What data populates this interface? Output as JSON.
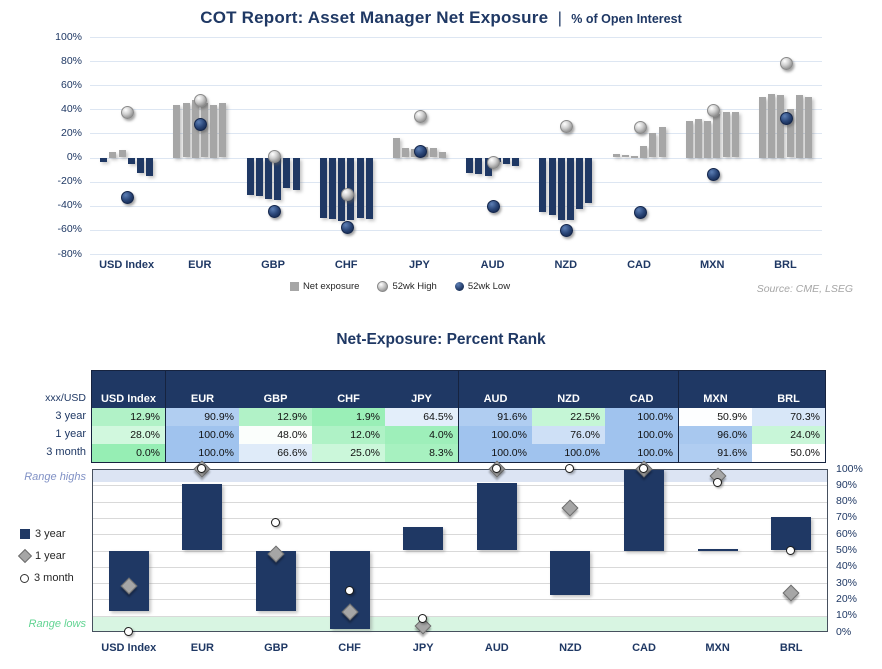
{
  "header": {
    "title_main": "COT Report: Asset Manager Net Exposure",
    "title_sep": "|",
    "title_sub": "% of Open Interest"
  },
  "source": "Source: CME, LSEG",
  "colors": {
    "navy": "#1F3864",
    "bar_gray": "#A6A6A6",
    "grid_top": "#DDE6F2",
    "grid_bottom": "#D9D9D9",
    "band_highs": "#DCE4F3",
    "band_lows": "#D8F5E2",
    "range_highs_text": "#8091C5",
    "range_lows_text": "#62D493",
    "scale_green": "#96EEB4",
    "scale_blue": "#A0C3EE",
    "source_text": "#A6A6A6",
    "table_header_bg": "#1F3864"
  },
  "table": {
    "corner_label": "xxx/USD",
    "columns": [
      "USD Index",
      "EUR",
      "GBP",
      "CHF",
      "JPY",
      "AUD",
      "NZD",
      "CAD",
      "MXN",
      "BRL"
    ],
    "group_separators_after": [
      0,
      4,
      7
    ],
    "rows": [
      {
        "label": "3 year",
        "values": [
          12.9,
          90.9,
          12.9,
          1.9,
          64.5,
          91.6,
          22.5,
          100.0,
          50.9,
          70.3
        ]
      },
      {
        "label": "1 year",
        "values": [
          28.0,
          100.0,
          48.0,
          12.0,
          4.0,
          100.0,
          76.0,
          100.0,
          96.0,
          24.0
        ]
      },
      {
        "label": "3 month",
        "values": [
          0.0,
          100.0,
          66.6,
          25.0,
          8.3,
          100.0,
          100.0,
          100.0,
          91.6,
          50.0
        ]
      }
    ]
  },
  "chart_data": [
    {
      "id": "net-exposure-chart",
      "type": "bar",
      "title": "COT Report: Asset Manager Net Exposure | % of Open Interest",
      "categories": [
        "USD Index",
        "EUR",
        "GBP",
        "CHF",
        "JPY",
        "AUD",
        "NZD",
        "CAD",
        "MXN",
        "BRL"
      ],
      "ylim": [
        -80,
        100
      ],
      "y_ticks": [
        100,
        80,
        60,
        40,
        20,
        0,
        -20,
        -40,
        -60,
        -80
      ],
      "grid": true,
      "legend_position": "bottom",
      "series": [
        {
          "name": "Net exposure",
          "type": "bar-group-weekly",
          "values": [
            [
              -4,
              5,
              6,
              -5,
              -13,
              -15
            ],
            [
              44,
              45,
              48,
              45,
              44,
              45
            ],
            [
              -31,
              -32,
              -34,
              -35,
              -25,
              -27
            ],
            [
              -50,
              -51,
              -53,
              -52,
              -50,
              -51
            ],
            [
              16,
              8,
              7,
              9,
              8,
              5
            ],
            [
              -13,
              -14,
              -15,
              -4,
              -5,
              -7
            ],
            [
              -45,
              -48,
              -52,
              -52,
              -43,
              -38
            ],
            [
              3,
              2,
              1,
              10,
              20,
              25
            ],
            [
              30,
              32,
              30,
              36,
              38,
              38
            ],
            [
              50,
              53,
              52,
              40,
              52,
              50
            ]
          ]
        },
        {
          "name": "52wk High",
          "type": "scatter",
          "values": [
            38,
            48,
            2,
            -30,
            35,
            -3,
            27,
            26,
            40,
            79
          ]
        },
        {
          "name": "52wk Low",
          "type": "scatter",
          "values": [
            -32,
            28,
            -44,
            -57,
            6,
            -40,
            -60,
            -45,
            -13,
            33
          ]
        }
      ]
    },
    {
      "id": "percent-rank-chart",
      "type": "bar+scatter",
      "title": "Net-Exposure: Percent Rank",
      "categories": [
        "USD Index",
        "EUR",
        "GBP",
        "CHF",
        "JPY",
        "AUD",
        "NZD",
        "CAD",
        "MXN",
        "BRL"
      ],
      "ylim": [
        0,
        100
      ],
      "y_ticks": [
        100,
        90,
        80,
        70,
        60,
        50,
        40,
        30,
        20,
        10,
        0
      ],
      "grid": true,
      "legend_position": "left",
      "bar_base": 50,
      "bands": {
        "highs": [
          92,
          100
        ],
        "lows": [
          0,
          10
        ]
      },
      "annotations": {
        "highs": "Range highs",
        "lows": "Range lows"
      },
      "series": [
        {
          "name": "3 year",
          "type": "floating-bar",
          "values": [
            12.9,
            90.9,
            12.9,
            1.9,
            64.5,
            91.6,
            22.5,
            100.0,
            50.9,
            70.3
          ]
        },
        {
          "name": "1 year",
          "type": "diamond",
          "values": [
            28.0,
            100.0,
            48.0,
            12.0,
            4.0,
            100.0,
            76.0,
            100.0,
            96.0,
            24.0
          ]
        },
        {
          "name": "3 month",
          "type": "circle",
          "values": [
            0.0,
            100.0,
            66.6,
            25.0,
            8.3,
            100.0,
            100.0,
            100.0,
            91.6,
            50.0
          ]
        }
      ]
    }
  ]
}
